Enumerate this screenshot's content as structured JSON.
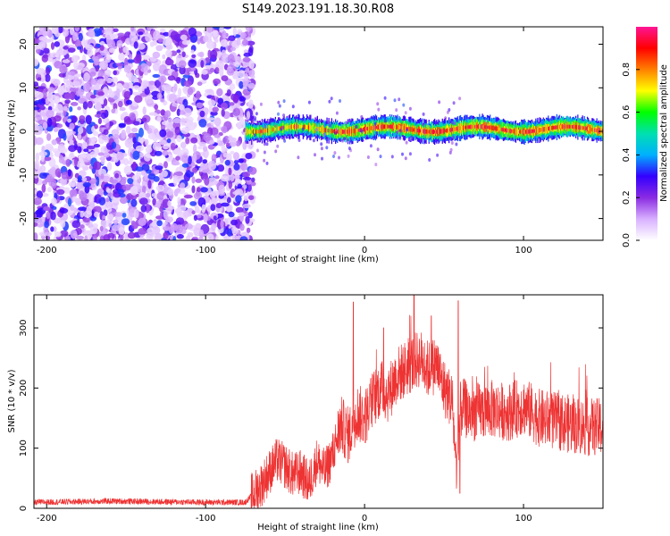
{
  "figure": {
    "title": "S149.2023.191.18.30.R08"
  },
  "chart_data": [
    {
      "type": "heatmap",
      "title": "S149.2023.191.18.30.R08",
      "xlabel": "Height of straight line (km)",
      "ylabel": "Frequency (Hz)",
      "xlim": [
        -208,
        150
      ],
      "ylim": [
        -25,
        24
      ],
      "x_ticks": [
        -200,
        -100,
        0,
        100
      ],
      "x_tick_labels": [
        "-200",
        "-100",
        "0",
        "100"
      ],
      "y_ticks": [
        -20,
        -10,
        0,
        10,
        20
      ],
      "y_tick_labels": [
        "-20",
        "-10",
        "0",
        "10",
        "20"
      ],
      "colorbar": {
        "label": "Normalized spectral amplitude",
        "range": [
          0,
          1
        ],
        "ticks": [
          0.0,
          0.2,
          0.4,
          0.6,
          0.8
        ],
        "tick_labels": [
          "0.0",
          "0.2",
          "0.4",
          "0.6",
          "0.8"
        ],
        "colors": [
          "#ffffff",
          "#d8b0ff",
          "#8a2be2",
          "#3300ff",
          "#00b0ff",
          "#00e0b0",
          "#00ff00",
          "#ffff00",
          "#ff8000",
          "#ff0000",
          "#ff1493"
        ]
      },
      "regions": [
        {
          "name": "noise",
          "x_range": [
            -208,
            -70
          ],
          "freq_range": [
            -25,
            24
          ],
          "amplitude_range": [
            0.05,
            0.35
          ]
        },
        {
          "name": "signal",
          "x_range": [
            -75,
            150
          ],
          "center_freq_hz": 0.5,
          "half_width_hz": 2.5,
          "amplitude_range": [
            0.3,
            0.85
          ]
        }
      ],
      "grid": false
    },
    {
      "type": "line",
      "xlabel": "Height of straight line (km)",
      "ylabel": "SNR (10 * v/v)",
      "xlim": [
        -208,
        150
      ],
      "ylim": [
        0,
        355
      ],
      "x_ticks": [
        -200,
        -100,
        0,
        100
      ],
      "x_tick_labels": [
        "-200",
        "-100",
        "0",
        "100"
      ],
      "y_ticks": [
        0,
        100,
        200,
        300
      ],
      "y_tick_labels": [
        "0",
        "100",
        "200",
        "300"
      ],
      "color": "#ee3333",
      "grid": false,
      "envelope": {
        "x": [
          -208,
          -160,
          -100,
          -75,
          -66,
          -60,
          -55,
          -50,
          -45,
          -40,
          -35,
          -30,
          -25,
          -20,
          -15,
          -10,
          -5,
          0,
          5,
          10,
          15,
          20,
          25,
          30,
          35,
          40,
          45,
          50,
          55,
          58,
          60,
          62,
          65,
          70,
          80,
          90,
          100,
          110,
          120,
          130,
          140,
          150
        ],
        "y": [
          10,
          12,
          10,
          10,
          35,
          60,
          80,
          70,
          55,
          60,
          40,
          80,
          60,
          90,
          140,
          120,
          160,
          150,
          180,
          200,
          190,
          220,
          230,
          240,
          250,
          230,
          240,
          200,
          180,
          60,
          160,
          170,
          160,
          160,
          165,
          160,
          170,
          150,
          145,
          140,
          135,
          135
        ]
      },
      "noise_amplitude": 35,
      "peaks": [
        {
          "x": -7,
          "y": 343
        },
        {
          "x": 31,
          "y": 355
        },
        {
          "x": 59,
          "y": 345
        },
        {
          "x": 60,
          "y": 25
        },
        {
          "x": 42,
          "y": 320
        },
        {
          "x": 12,
          "y": 300
        }
      ]
    }
  ]
}
